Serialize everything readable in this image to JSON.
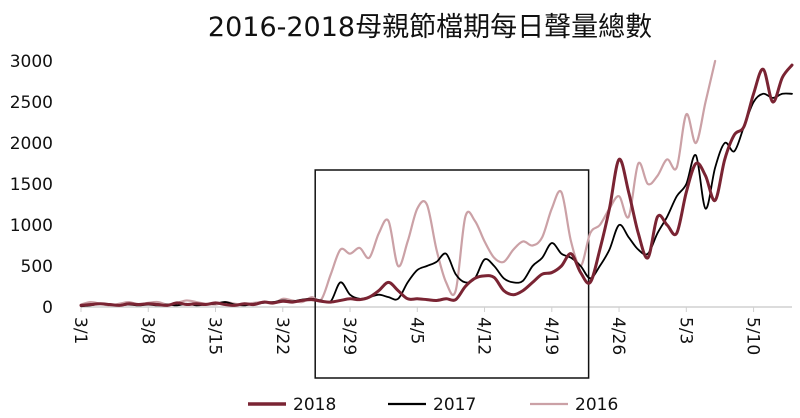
{
  "chart_data": {
    "type": "line",
    "title": "2016-2018母親節檔期每日聲量總數",
    "xlabel": "",
    "ylabel": "",
    "ylim": [
      0,
      3000
    ],
    "yticks": [
      0,
      500,
      1000,
      1500,
      2000,
      2500,
      3000
    ],
    "xtick_labels": [
      "3/1",
      "3/8",
      "3/15",
      "3/22",
      "3/29",
      "4/5",
      "4/12",
      "4/19",
      "4/26",
      "5/3",
      "5/10"
    ],
    "x_dates": [
      "3/1",
      "3/2",
      "3/3",
      "3/4",
      "3/5",
      "3/6",
      "3/7",
      "3/8",
      "3/9",
      "3/10",
      "3/11",
      "3/12",
      "3/13",
      "3/14",
      "3/15",
      "3/16",
      "3/17",
      "3/18",
      "3/19",
      "3/20",
      "3/21",
      "3/22",
      "3/23",
      "3/24",
      "3/25",
      "3/26",
      "3/27",
      "3/28",
      "3/29",
      "3/30",
      "3/31",
      "4/1",
      "4/2",
      "4/3",
      "4/4",
      "4/5",
      "4/6",
      "4/7",
      "4/8",
      "4/9",
      "4/10",
      "4/11",
      "4/12",
      "4/13",
      "4/14",
      "4/15",
      "4/16",
      "4/17",
      "4/18",
      "4/19",
      "4/20",
      "4/21",
      "4/22",
      "4/23",
      "4/24",
      "4/25",
      "4/26",
      "4/27",
      "4/28",
      "4/29",
      "4/30",
      "5/1",
      "5/2",
      "5/3",
      "5/4",
      "5/5",
      "5/6",
      "5/7",
      "5/8",
      "5/9",
      "5/10",
      "5/11",
      "5/12",
      "5/13",
      "5/14"
    ],
    "grid": false,
    "legend_position": "bottom",
    "highlight_box": {
      "x_start": "3/26",
      "x_end": "4/22"
    },
    "series": [
      {
        "name": "2018",
        "color": "#7a2433",
        "values": [
          20,
          30,
          40,
          30,
          20,
          40,
          30,
          40,
          30,
          20,
          50,
          30,
          40,
          30,
          50,
          30,
          20,
          40,
          30,
          60,
          50,
          70,
          60,
          80,
          90,
          70,
          60,
          80,
          100,
          90,
          120,
          200,
          300,
          200,
          100,
          100,
          90,
          80,
          100,
          90,
          250,
          350,
          380,
          360,
          200,
          150,
          200,
          300,
          400,
          420,
          500,
          650,
          420,
          300,
          700,
          1200,
          1800,
          1400,
          900,
          600,
          1100,
          1000,
          900,
          1400,
          1750,
          1600,
          1300,
          1800,
          2100,
          2200,
          2600,
          2900,
          2500,
          2800,
          2950
        ]
      },
      {
        "name": "2017",
        "color": "#000000",
        "values": [
          10,
          20,
          40,
          30,
          20,
          30,
          20,
          30,
          20,
          30,
          20,
          40,
          20,
          30,
          40,
          60,
          30,
          20,
          40,
          50,
          60,
          80,
          70,
          90,
          100,
          80,
          70,
          300,
          150,
          100,
          120,
          150,
          120,
          100,
          300,
          450,
          500,
          550,
          650,
          400,
          300,
          350,
          580,
          500,
          350,
          300,
          320,
          500,
          600,
          780,
          650,
          600,
          500,
          350,
          500,
          700,
          1000,
          850,
          700,
          650,
          900,
          1100,
          1350,
          1500,
          1850,
          1200,
          1700,
          2000,
          1900,
          2200,
          2500,
          2600,
          2550,
          2600,
          2600
        ]
      },
      {
        "name": "2016",
        "color": "#cba1a6",
        "values": [
          30,
          60,
          40,
          20,
          40,
          60,
          30,
          50,
          60,
          30,
          50,
          80,
          60,
          40,
          30,
          60,
          40,
          30,
          50,
          60,
          40,
          100,
          80,
          60,
          120,
          90,
          400,
          700,
          650,
          720,
          600,
          900,
          1050,
          500,
          800,
          1200,
          1250,
          700,
          300,
          200,
          1100,
          1050,
          800,
          600,
          550,
          700,
          800,
          750,
          850,
          1200,
          1400,
          800,
          500,
          900,
          1000,
          1200,
          1350,
          1100,
          1750,
          1500,
          1600,
          1800,
          1700,
          2350,
          2000,
          2500,
          3000
        ]
      }
    ]
  }
}
